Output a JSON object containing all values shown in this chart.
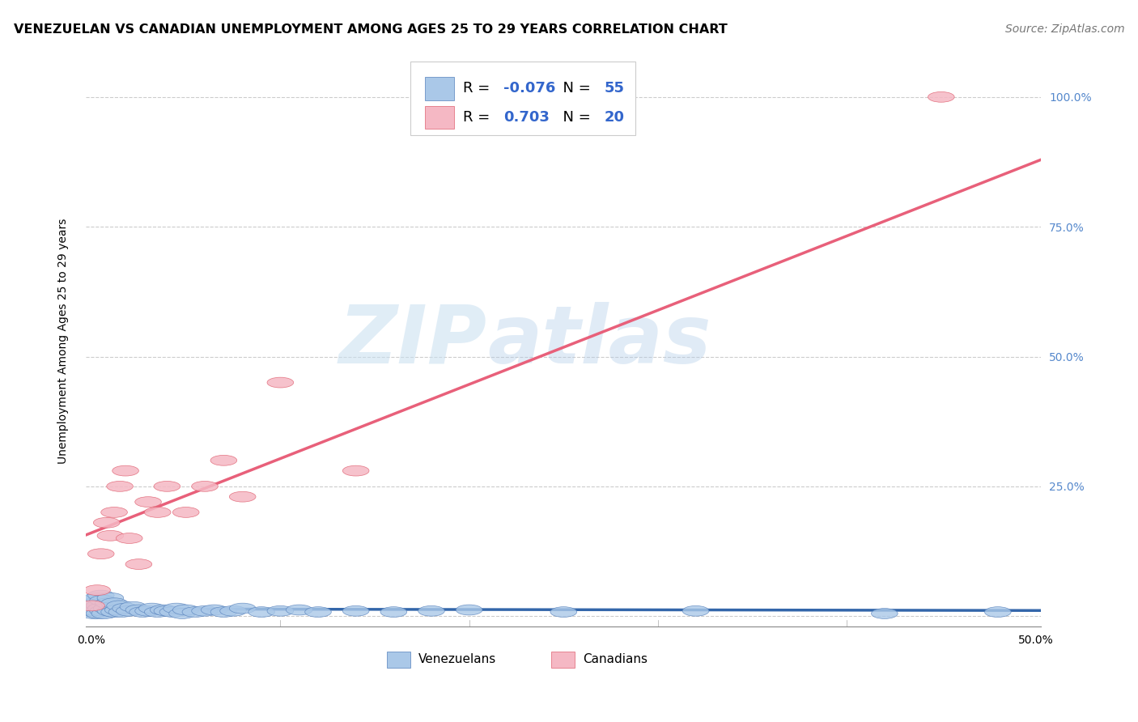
{
  "title": "VENEZUELAN VS CANADIAN UNEMPLOYMENT AMONG AGES 25 TO 29 YEARS CORRELATION CHART",
  "source": "Source: ZipAtlas.com",
  "ylabel_label": "Unemployment Among Ages 25 to 29 years",
  "y_ticks": [
    0.0,
    0.25,
    0.5,
    0.75,
    1.0
  ],
  "y_tick_labels": [
    "",
    "25.0%",
    "50.0%",
    "75.0%",
    "100.0%"
  ],
  "x_ticks": [
    0.0,
    0.1,
    0.2,
    0.3,
    0.4,
    0.5
  ],
  "x_tick_labels": [
    "0.0%",
    "",
    "",
    "",
    "",
    "50.0%"
  ],
  "venezuelan_fill": "#aac8e8",
  "canadian_fill": "#f5b8c4",
  "venezuelan_edge": "#5580bb",
  "canadian_edge": "#e06070",
  "venezuelan_line": "#3366aa",
  "canadian_line": "#e8607a",
  "R_venezuelan": -0.076,
  "N_venezuelan": 55,
  "R_canadian": 0.703,
  "N_canadian": 20,
  "watermark_zip": "ZIP",
  "watermark_atlas": "atlas",
  "background_color": "#ffffff",
  "grid_color": "#cccccc",
  "right_tick_color": "#5588cc",
  "title_fontsize": 11.5,
  "source_fontsize": 10,
  "axis_label_fontsize": 10,
  "tick_fontsize": 10,
  "legend_r_color": "#dd4466",
  "legend_n_color": "#3366cc",
  "ven_x": [
    0.0,
    0.001,
    0.001,
    0.002,
    0.002,
    0.003,
    0.003,
    0.004,
    0.004,
    0.005,
    0.005,
    0.006,
    0.006,
    0.007,
    0.008,
    0.009,
    0.01,
    0.01,
    0.012,
    0.012,
    0.014,
    0.015,
    0.016,
    0.018,
    0.02,
    0.022,
    0.025,
    0.027,
    0.03,
    0.032,
    0.035,
    0.038,
    0.04,
    0.043,
    0.045,
    0.048,
    0.05,
    0.055,
    0.06,
    0.065,
    0.07,
    0.075,
    0.08,
    0.09,
    0.1,
    0.11,
    0.12,
    0.14,
    0.16,
    0.18,
    0.2,
    0.25,
    0.32,
    0.42,
    0.48
  ],
  "ven_y": [
    0.02,
    0.005,
    0.03,
    0.008,
    0.025,
    0.01,
    0.035,
    0.005,
    0.02,
    0.015,
    0.04,
    0.01,
    0.03,
    0.005,
    0.015,
    0.025,
    0.01,
    0.035,
    0.008,
    0.025,
    0.012,
    0.02,
    0.008,
    0.015,
    0.01,
    0.018,
    0.012,
    0.008,
    0.01,
    0.015,
    0.008,
    0.012,
    0.01,
    0.008,
    0.015,
    0.005,
    0.012,
    0.008,
    0.01,
    0.012,
    0.008,
    0.01,
    0.015,
    0.008,
    0.01,
    0.012,
    0.008,
    0.01,
    0.008,
    0.01,
    0.012,
    0.008,
    0.01,
    0.005,
    0.008
  ],
  "can_x": [
    0.0,
    0.003,
    0.005,
    0.008,
    0.01,
    0.012,
    0.015,
    0.018,
    0.02,
    0.025,
    0.03,
    0.035,
    0.04,
    0.05,
    0.06,
    0.07,
    0.08,
    0.1,
    0.14,
    0.45
  ],
  "can_y": [
    0.02,
    0.05,
    0.12,
    0.18,
    0.155,
    0.2,
    0.25,
    0.28,
    0.15,
    0.1,
    0.22,
    0.2,
    0.25,
    0.2,
    0.25,
    0.3,
    0.23,
    0.45,
    0.28,
    1.0
  ]
}
